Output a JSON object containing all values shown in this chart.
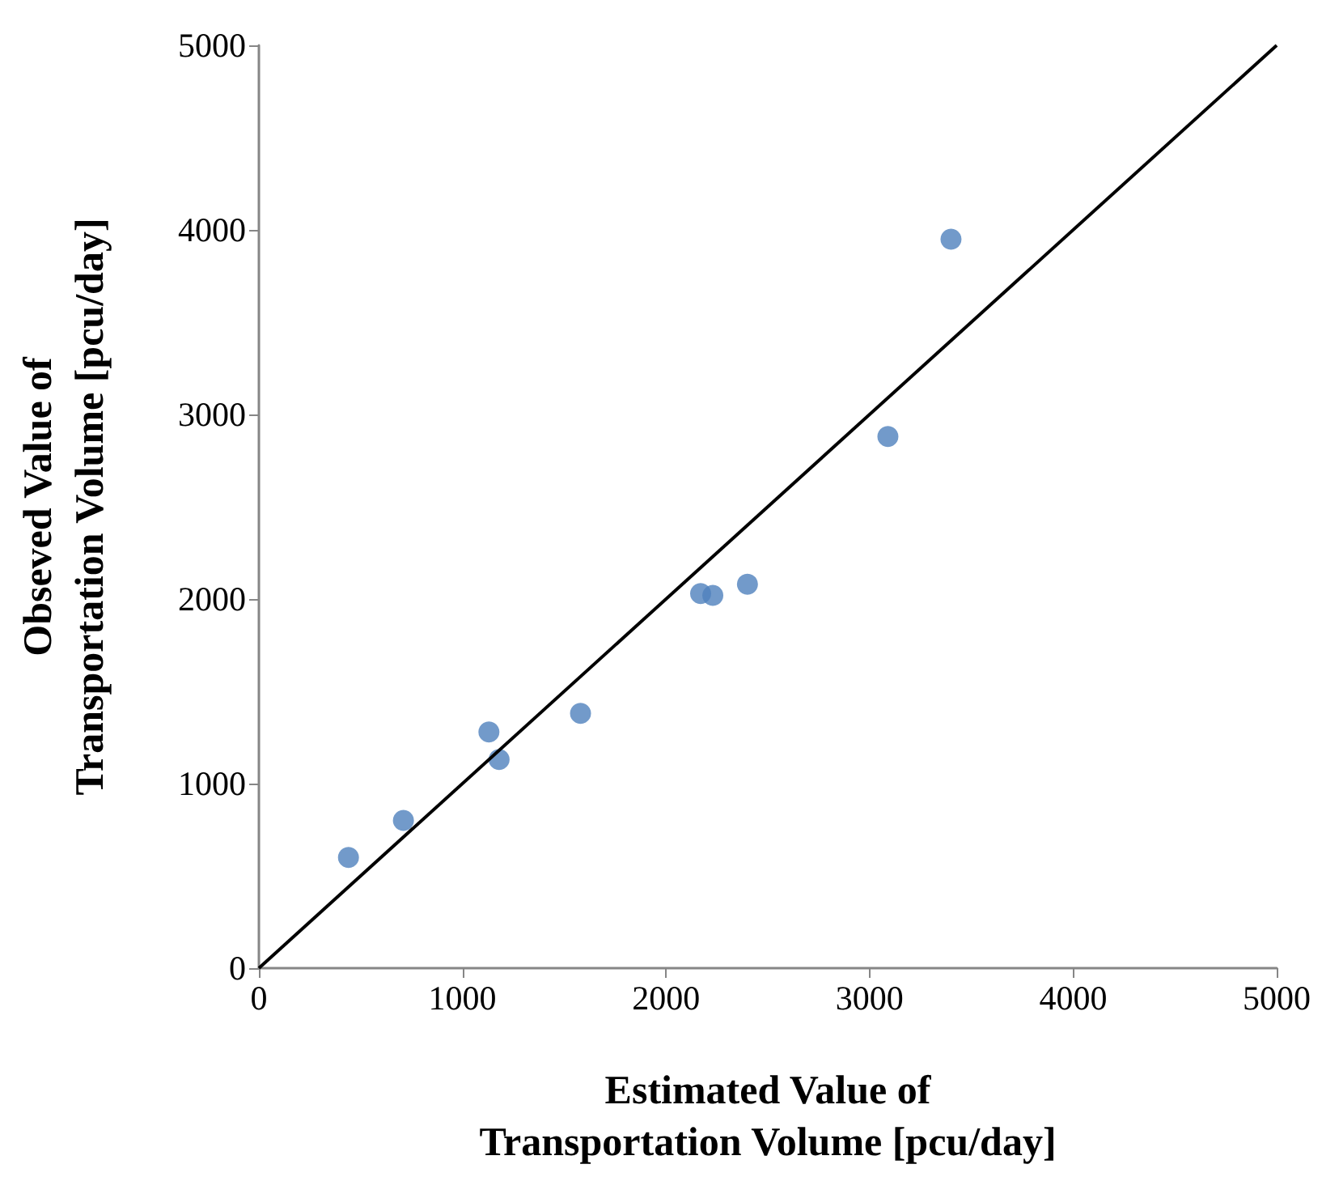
{
  "chart_data": {
    "type": "scatter",
    "xlabel": "Estimated Value of\nTransportation Volume [pcu/day]",
    "ylabel": "Obseved Value of\nTransportation Volume [pcu/day]",
    "xlim": [
      0,
      5000
    ],
    "ylim": [
      0,
      5000
    ],
    "xticks": [
      0,
      1000,
      2000,
      3000,
      4000,
      5000
    ],
    "yticks": [
      0,
      1000,
      2000,
      3000,
      4000,
      5000
    ],
    "grid": false,
    "series": [
      {
        "color": "#4f81bd",
        "marker": "circle",
        "x": [
          440,
          710,
          1130,
          1180,
          1580,
          2170,
          2230,
          2400,
          3090,
          3400
        ],
        "values": [
          600,
          800,
          1280,
          1130,
          1380,
          2030,
          2020,
          2080,
          2880,
          3950
        ]
      },
      {
        "type": "line",
        "color": "#000000",
        "marker": "none",
        "line_style": "solid",
        "x": [
          0,
          5000
        ],
        "values": [
          0,
          5000
        ]
      }
    ]
  }
}
